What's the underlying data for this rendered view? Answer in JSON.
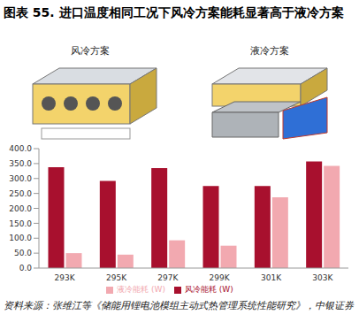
{
  "title": "图表 55. 进口温度相同工况下风冷方案能耗显著高于液冷方案",
  "panels": [
    "风冷方案",
    "液冷方案"
  ],
  "chart_data": {
    "type": "bar",
    "categories": [
      "293K",
      "295K",
      "297K",
      "299K",
      "301K",
      "303K"
    ],
    "series": [
      {
        "name": "风冷能耗 (W)",
        "color": "#a8102e",
        "values": [
          338,
          292,
          335,
          275,
          275,
          357
        ]
      },
      {
        "name": "液冷能耗 (W)",
        "color": "#f2a9b0",
        "values": [
          50,
          45,
          93,
          75,
          237,
          342
        ]
      }
    ],
    "ylim": [
      0,
      400
    ],
    "yticks": [
      {
        "value": 0,
        "label": "0.0"
      },
      {
        "value": 50,
        "label": "50.0"
      },
      {
        "value": 100,
        "label": "100.0"
      },
      {
        "value": 150,
        "label": "150.0"
      },
      {
        "value": 200,
        "label": "200.0"
      },
      {
        "value": 250,
        "label": "250.0"
      },
      {
        "value": 300,
        "label": "300.0"
      },
      {
        "value": 350,
        "label": "350.0"
      },
      {
        "value": 400,
        "label": "400.0"
      }
    ],
    "grid": false,
    "legend": "bottom"
  },
  "source": "资料来源：张维江等《储能用锂电池模组主动式热管理系统性能研究》，中银证券"
}
